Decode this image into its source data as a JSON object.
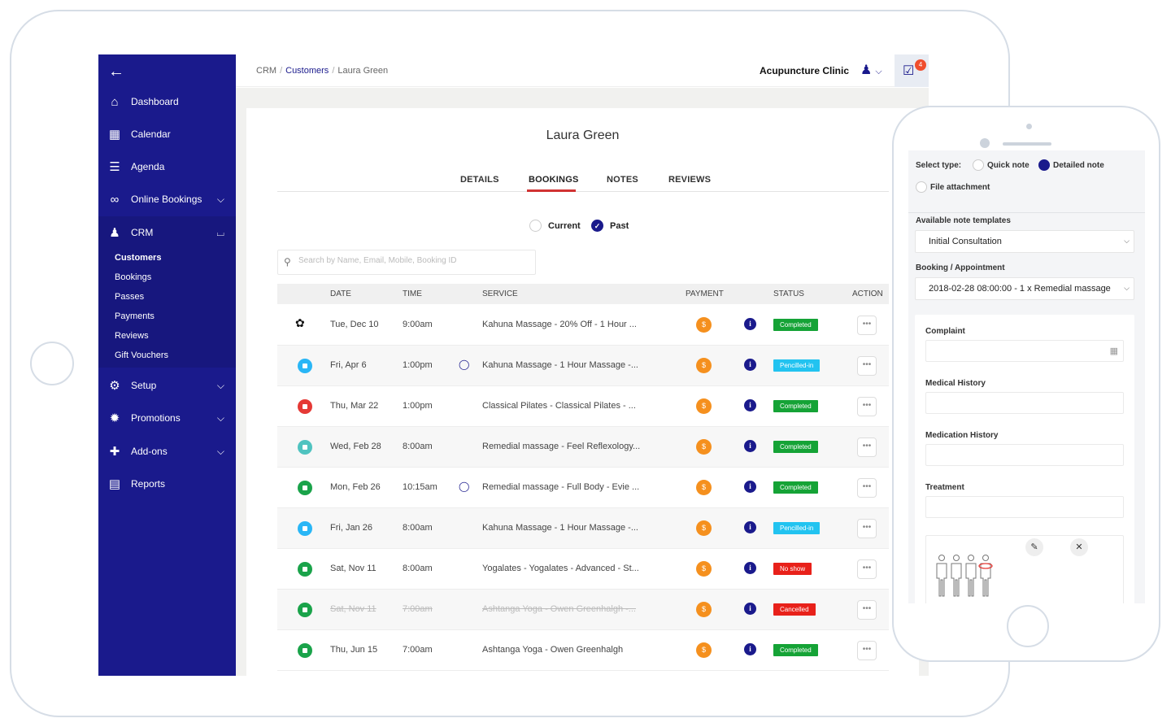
{
  "breadcrumb": {
    "crm": "CRM",
    "customers": "Customers",
    "current": "Laura Green"
  },
  "header": {
    "clinic": "Acupuncture Clinic",
    "notification_count": "4"
  },
  "sidebar": {
    "items": [
      {
        "label": "Dashboard",
        "icon": "home-icon"
      },
      {
        "label": "Calendar",
        "icon": "calendar-icon"
      },
      {
        "label": "Agenda",
        "icon": "list-icon"
      },
      {
        "label": "Online Bookings",
        "icon": "link-icon"
      },
      {
        "label": "CRM",
        "icon": "users-icon"
      },
      {
        "label": "Setup",
        "icon": "gears-icon"
      },
      {
        "label": "Promotions",
        "icon": "gear-badge-icon"
      },
      {
        "label": "Add-ons",
        "icon": "puzzle-icon"
      },
      {
        "label": "Reports",
        "icon": "document-icon"
      }
    ],
    "crm_sub": [
      "Customers",
      "Bookings",
      "Passes",
      "Payments",
      "Reviews",
      "Gift Vouchers"
    ]
  },
  "customer": {
    "name": "Laura Green"
  },
  "tabs": [
    "DETAILS",
    "BOOKINGS",
    "NOTES",
    "REVIEWS"
  ],
  "filter": {
    "current": "Current",
    "past": "Past",
    "selected": "Past"
  },
  "search": {
    "placeholder": "Search by Name, Email, Mobile, Booking ID"
  },
  "table": {
    "headers": [
      "DATE",
      "TIME",
      "SERVICE",
      "PAYMENT",
      "STATUS",
      "ACTION"
    ],
    "rows": [
      {
        "date": "Tue, Dec 10",
        "time": "9:00am",
        "service": "Kahuna Massage - 20% Off - 1 Hour ...",
        "status": "Completed",
        "icon": "lotus",
        "chat": false,
        "struck": false
      },
      {
        "date": "Fri, Apr 6",
        "time": "1:00pm",
        "service": "Kahuna Massage - 1 Hour Massage -...",
        "status": "Pencilled-in",
        "icon": "cyan",
        "chat": true,
        "struck": false
      },
      {
        "date": "Thu, Mar 22",
        "time": "1:00pm",
        "service": "Classical Pilates - Classical Pilates - ...",
        "status": "Completed",
        "icon": "red",
        "chat": false,
        "struck": false
      },
      {
        "date": "Wed, Feb 28",
        "time": "8:00am",
        "service": "Remedial massage - Feel Reflexology...",
        "status": "Completed",
        "icon": "teal",
        "chat": false,
        "struck": false
      },
      {
        "date": "Mon, Feb 26",
        "time": "10:15am",
        "service": "Remedial massage - Full Body - Evie ...",
        "status": "Completed",
        "icon": "green",
        "chat": true,
        "struck": false
      },
      {
        "date": "Fri, Jan 26",
        "time": "8:00am",
        "service": "Kahuna Massage - 1 Hour Massage -...",
        "status": "Pencilled-in",
        "icon": "cyan",
        "chat": false,
        "struck": false
      },
      {
        "date": "Sat, Nov 11",
        "time": "8:00am",
        "service": "Yogalates - Yogalates - Advanced - St...",
        "status": "No show",
        "icon": "green",
        "chat": false,
        "struck": false
      },
      {
        "date": "Sat, Nov 11",
        "time": "7:00am",
        "service": "Ashtanga Yoga - Owen Greenhalgh -...",
        "status": "Cancelled",
        "icon": "green",
        "chat": false,
        "struck": true
      },
      {
        "date": "Thu, Jun 15",
        "time": "7:00am",
        "service": "Ashtanga Yoga - Owen Greenhalgh",
        "status": "Completed",
        "icon": "green",
        "chat": false,
        "struck": false
      }
    ],
    "payment_symbol": "$",
    "info_symbol": "i",
    "action_symbol": "•••"
  },
  "phone": {
    "select_type_label": "Select type:",
    "types": [
      "Quick note",
      "Detailed note",
      "File attachment"
    ],
    "selected_type": "Detailed note",
    "templates_label": "Available note templates",
    "template_value": "Initial Consultation",
    "booking_label": "Booking / Appointment",
    "booking_value": "2018-02-28 08:00:00 - 1 x Remedial massage",
    "fields": [
      "Complaint",
      "Medical History",
      "Medication History",
      "Treatment"
    ]
  },
  "colors": {
    "sidebar": "#1a1a8c",
    "completed": "#15a336",
    "pencilled": "#22c3f0",
    "noshow": "#e8211a",
    "payment": "#f5901e",
    "tab_underline": "#d13333"
  }
}
